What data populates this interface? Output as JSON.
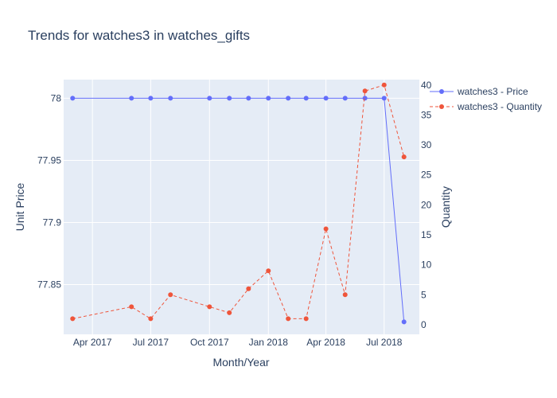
{
  "chart_data": {
    "type": "line",
    "title": "Trends for watches3 in watches_gifts",
    "xlabel": "Month/Year",
    "ylabel": "Unit Price",
    "y2label": "Quantity",
    "x_ticks": [
      {
        "date": "2017-04-01",
        "label": "Apr 2017"
      },
      {
        "date": "2017-07-01",
        "label": "Jul 2017"
      },
      {
        "date": "2017-10-01",
        "label": "Oct 2017"
      },
      {
        "date": "2018-01-01",
        "label": "Jan 2018"
      },
      {
        "date": "2018-04-01",
        "label": "Apr 2018"
      },
      {
        "date": "2018-07-01",
        "label": "Jul 2018"
      }
    ],
    "xlim": [
      "2017-02-15",
      "2018-08-25"
    ],
    "ylim": [
      77.81,
      78.015
    ],
    "y_ticks": [
      77.85,
      77.9,
      77.95,
      78
    ],
    "y_tick_labels": [
      "77.85",
      "77.9",
      "77.95",
      "78"
    ],
    "y2lim": [
      -1.6,
      40.9
    ],
    "y2_ticks": [
      0,
      5,
      10,
      15,
      20,
      25,
      30,
      35,
      40
    ],
    "y2_tick_labels": [
      "0",
      "5",
      "10",
      "15",
      "20",
      "25",
      "30",
      "35",
      "40"
    ],
    "grid": true,
    "legend_position": "top-right",
    "series": [
      {
        "name": "watches3 - Price",
        "axis": "y",
        "color": "#636efa",
        "dash": "solid",
        "points": [
          {
            "x": "2017-03-01",
            "y": 78
          },
          {
            "x": "2017-06-01",
            "y": 78
          },
          {
            "x": "2017-07-01",
            "y": 78
          },
          {
            "x": "2017-08-01",
            "y": 78
          },
          {
            "x": "2017-10-01",
            "y": 78
          },
          {
            "x": "2017-11-01",
            "y": 78
          },
          {
            "x": "2017-12-01",
            "y": 78
          },
          {
            "x": "2018-01-01",
            "y": 78
          },
          {
            "x": "2018-02-01",
            "y": 78
          },
          {
            "x": "2018-03-01",
            "y": 78
          },
          {
            "x": "2018-04-01",
            "y": 78
          },
          {
            "x": "2018-05-01",
            "y": 78
          },
          {
            "x": "2018-06-01",
            "y": 78
          },
          {
            "x": "2018-07-01",
            "y": 78
          },
          {
            "x": "2018-08-01",
            "y": 77.82
          }
        ]
      },
      {
        "name": "watches3 - Quantity",
        "axis": "y2",
        "color": "#ef553b",
        "dash": "dash",
        "points": [
          {
            "x": "2017-03-01",
            "y": 1
          },
          {
            "x": "2017-06-01",
            "y": 3
          },
          {
            "x": "2017-07-01",
            "y": 1
          },
          {
            "x": "2017-08-01",
            "y": 5
          },
          {
            "x": "2017-10-01",
            "y": 3
          },
          {
            "x": "2017-11-01",
            "y": 2
          },
          {
            "x": "2017-12-01",
            "y": 6
          },
          {
            "x": "2018-01-01",
            "y": 9
          },
          {
            "x": "2018-02-01",
            "y": 1
          },
          {
            "x": "2018-03-01",
            "y": 1
          },
          {
            "x": "2018-04-01",
            "y": 16
          },
          {
            "x": "2018-05-01",
            "y": 5
          },
          {
            "x": "2018-06-01",
            "y": 39
          },
          {
            "x": "2018-07-01",
            "y": 40
          },
          {
            "x": "2018-08-01",
            "y": 28
          }
        ]
      }
    ]
  }
}
